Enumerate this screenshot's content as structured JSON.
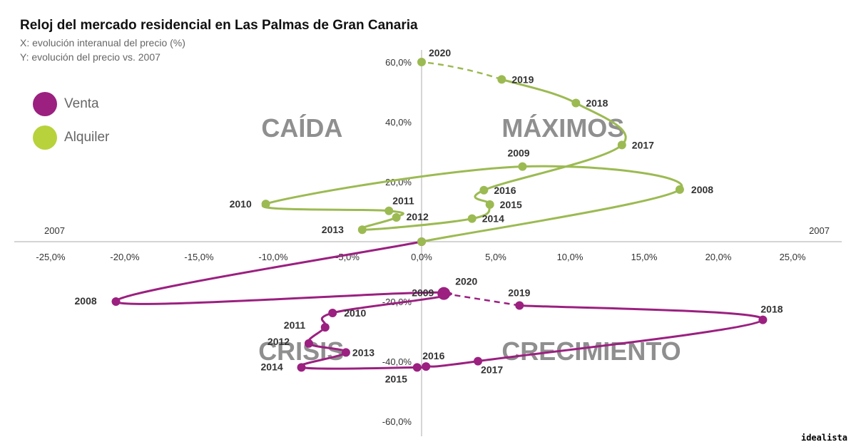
{
  "title": "Reloj del mercado residencial en Las Palmas de Gran Canaria",
  "subtitle_x": "X: evolución interanual del precio (%)",
  "subtitle_y": "Y: evolución del precio vs. 2007",
  "brand": "idealista",
  "colors": {
    "venta": "#9b2080",
    "alquiler": "#9cba52",
    "axis": "#bbbbbb",
    "quadrant_text": "#8f8f8f"
  },
  "chart_data": {
    "type": "line",
    "xlim": [
      -25,
      25
    ],
    "ylim": [
      -60,
      60
    ],
    "x_ticks": [
      "-25,0%",
      "-20,0%",
      "-15,0%",
      "-10,0%",
      "-5,0%",
      "0,0%",
      "5,0%",
      "10,0%",
      "15,0%",
      "20,0%",
      "25,0%"
    ],
    "y_ticks": [
      "60,0%",
      "40,0%",
      "20,0%",
      "-20,0%",
      "-40,0%",
      "-60,0%"
    ],
    "axis_end_labels": {
      "left": "2007",
      "right": "2007"
    },
    "quadrants": {
      "top_left": "CAÍDA",
      "top_right": "MÁXIMOS",
      "bottom_left": "CRISIS",
      "bottom_right": "CRECIMIENTO"
    },
    "series": [
      {
        "name": "Venta",
        "points": [
          {
            "year": "2007",
            "x": 0.0,
            "y": 0.0,
            "label": ""
          },
          {
            "year": "2008",
            "x": -20.6,
            "y": -20.0,
            "label": "2008"
          },
          {
            "year": "2009",
            "x": 1.5,
            "y": -17.0,
            "label": "2009"
          },
          {
            "year": "2010",
            "x": -6.0,
            "y": -23.8,
            "label": "2010"
          },
          {
            "year": "2011",
            "x": -6.5,
            "y": -28.6,
            "label": "2011"
          },
          {
            "year": "2012",
            "x": -7.6,
            "y": -34.0,
            "label": "2012"
          },
          {
            "year": "2013",
            "x": -5.1,
            "y": -37.0,
            "label": "2013"
          },
          {
            "year": "2014",
            "x": -8.1,
            "y": -42.0,
            "label": "2014"
          },
          {
            "year": "2015",
            "x": -0.3,
            "y": -42.0,
            "label": "2015"
          },
          {
            "year": "2016",
            "x": 0.3,
            "y": -41.7,
            "label": "2016"
          },
          {
            "year": "2017",
            "x": 3.8,
            "y": -39.9,
            "label": "2017"
          },
          {
            "year": "2018",
            "x": 23.0,
            "y": -26.1,
            "label": "2018"
          },
          {
            "year": "2019",
            "x": 6.6,
            "y": -21.3,
            "label": "2019"
          },
          {
            "year": "2020",
            "x": 1.5,
            "y": -17.3,
            "label": "2020"
          }
        ]
      },
      {
        "name": "Alquiler",
        "points": [
          {
            "year": "2007",
            "x": 0.0,
            "y": 0.0,
            "label": ""
          },
          {
            "year": "2008",
            "x": 17.4,
            "y": 17.4,
            "label": "2008"
          },
          {
            "year": "2009",
            "x": 6.8,
            "y": 25.1,
            "label": "2009"
          },
          {
            "year": "2010",
            "x": -10.5,
            "y": 12.6,
            "label": "2010"
          },
          {
            "year": "2011",
            "x": -2.2,
            "y": 10.3,
            "label": "2011"
          },
          {
            "year": "2012",
            "x": -1.7,
            "y": 8.1,
            "label": "2012"
          },
          {
            "year": "2013",
            "x": -4.0,
            "y": 4.0,
            "label": "2013"
          },
          {
            "year": "2014",
            "x": 3.4,
            "y": 7.7,
            "label": "2014"
          },
          {
            "year": "2015",
            "x": 4.6,
            "y": 12.4,
            "label": "2015"
          },
          {
            "year": "2016",
            "x": 4.2,
            "y": 17.2,
            "label": "2016"
          },
          {
            "year": "2017",
            "x": 13.5,
            "y": 32.3,
            "label": "2017"
          },
          {
            "year": "2018",
            "x": 10.4,
            "y": 46.3,
            "label": "2018"
          },
          {
            "year": "2019",
            "x": 5.4,
            "y": 54.2,
            "label": "2019"
          },
          {
            "year": "2020",
            "x": 0.0,
            "y": 60.0,
            "label": "2020"
          }
        ]
      }
    ],
    "legend": "top-left",
    "grid": false
  }
}
